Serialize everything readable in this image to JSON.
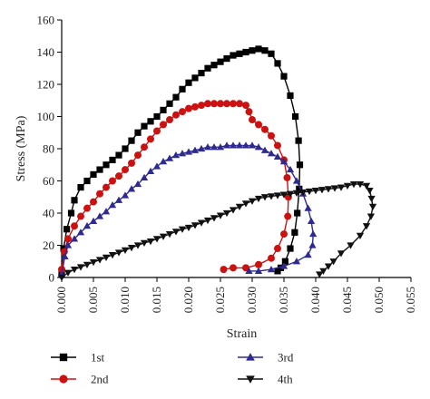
{
  "chart_data": {
    "type": "scatter",
    "title": "",
    "xlabel": "Strain",
    "ylabel": "Stress (MPa)",
    "xlim": [
      0,
      0.055
    ],
    "ylim": [
      0,
      160
    ],
    "x_ticks": [
      "0.000",
      "0.005",
      "0.010",
      "0.015",
      "0.020",
      "0.025",
      "0.030",
      "0.035",
      "0.040",
      "0.045",
      "0.050",
      "0.055"
    ],
    "y_ticks": [
      "0",
      "20",
      "40",
      "60",
      "80",
      "100",
      "120",
      "140",
      "160"
    ],
    "grid": false,
    "legend_position": "bottom",
    "series": [
      {
        "name": "1st",
        "color": "#000000",
        "marker": "square",
        "points": [
          [
            0.0,
            2
          ],
          [
            0.0003,
            18
          ],
          [
            0.0008,
            30
          ],
          [
            0.0015,
            40
          ],
          [
            0.002,
            48
          ],
          [
            0.003,
            56
          ],
          [
            0.004,
            60
          ],
          [
            0.005,
            64
          ],
          [
            0.006,
            67
          ],
          [
            0.007,
            70
          ],
          [
            0.008,
            73
          ],
          [
            0.009,
            76
          ],
          [
            0.01,
            80
          ],
          [
            0.011,
            85
          ],
          [
            0.012,
            90
          ],
          [
            0.013,
            94
          ],
          [
            0.014,
            97
          ],
          [
            0.015,
            100
          ],
          [
            0.016,
            104
          ],
          [
            0.017,
            108
          ],
          [
            0.018,
            112
          ],
          [
            0.019,
            117
          ],
          [
            0.02,
            121
          ],
          [
            0.021,
            124
          ],
          [
            0.022,
            127
          ],
          [
            0.023,
            130
          ],
          [
            0.024,
            132
          ],
          [
            0.025,
            134
          ],
          [
            0.026,
            136
          ],
          [
            0.027,
            138
          ],
          [
            0.028,
            139
          ],
          [
            0.029,
            140
          ],
          [
            0.03,
            141
          ],
          [
            0.031,
            142
          ],
          [
            0.032,
            141
          ],
          [
            0.033,
            139
          ],
          [
            0.034,
            133
          ],
          [
            0.035,
            125
          ],
          [
            0.036,
            113
          ],
          [
            0.0368,
            100
          ],
          [
            0.0373,
            85
          ],
          [
            0.0375,
            70
          ],
          [
            0.0374,
            55
          ],
          [
            0.0371,
            40
          ],
          [
            0.0367,
            28
          ],
          [
            0.036,
            18
          ],
          [
            0.0352,
            10
          ],
          [
            0.0345,
            6
          ],
          [
            0.034,
            4
          ]
        ]
      },
      {
        "name": "2nd",
        "color": "#cc1111",
        "marker": "circle",
        "points": [
          [
            0.0,
            5
          ],
          [
            0.0004,
            16
          ],
          [
            0.001,
            24
          ],
          [
            0.002,
            32
          ],
          [
            0.003,
            38
          ],
          [
            0.004,
            43
          ],
          [
            0.005,
            47
          ],
          [
            0.006,
            52
          ],
          [
            0.007,
            56
          ],
          [
            0.008,
            60
          ],
          [
            0.009,
            63
          ],
          [
            0.01,
            67
          ],
          [
            0.011,
            71
          ],
          [
            0.012,
            76
          ],
          [
            0.013,
            81
          ],
          [
            0.014,
            86
          ],
          [
            0.015,
            91
          ],
          [
            0.016,
            95
          ],
          [
            0.017,
            98
          ],
          [
            0.018,
            101
          ],
          [
            0.019,
            103
          ],
          [
            0.02,
            105
          ],
          [
            0.021,
            106
          ],
          [
            0.022,
            107
          ],
          [
            0.023,
            108
          ],
          [
            0.024,
            108
          ],
          [
            0.025,
            108
          ],
          [
            0.026,
            108
          ],
          [
            0.027,
            108
          ],
          [
            0.028,
            108
          ],
          [
            0.029,
            107
          ],
          [
            0.0295,
            103
          ],
          [
            0.03,
            98
          ],
          [
            0.031,
            95
          ],
          [
            0.032,
            92
          ],
          [
            0.033,
            88
          ],
          [
            0.034,
            82
          ],
          [
            0.035,
            73
          ],
          [
            0.0355,
            62
          ],
          [
            0.0357,
            50
          ],
          [
            0.0356,
            38
          ],
          [
            0.035,
            27
          ],
          [
            0.034,
            18
          ],
          [
            0.033,
            12
          ],
          [
            0.031,
            8
          ],
          [
            0.029,
            6
          ],
          [
            0.027,
            6
          ],
          [
            0.0255,
            5
          ]
        ]
      },
      {
        "name": "3rd",
        "color": "#2e2a8f",
        "marker": "triangle-up",
        "points": [
          [
            0.0,
            2
          ],
          [
            0.0005,
            13
          ],
          [
            0.001,
            20
          ],
          [
            0.002,
            24
          ],
          [
            0.003,
            28
          ],
          [
            0.004,
            32
          ],
          [
            0.005,
            35
          ],
          [
            0.006,
            38
          ],
          [
            0.007,
            41
          ],
          [
            0.008,
            45
          ],
          [
            0.009,
            48
          ],
          [
            0.01,
            51
          ],
          [
            0.011,
            55
          ],
          [
            0.012,
            58
          ],
          [
            0.013,
            62
          ],
          [
            0.014,
            66
          ],
          [
            0.015,
            69
          ],
          [
            0.016,
            72
          ],
          [
            0.017,
            74
          ],
          [
            0.018,
            76
          ],
          [
            0.019,
            77
          ],
          [
            0.02,
            78
          ],
          [
            0.021,
            79
          ],
          [
            0.022,
            80
          ],
          [
            0.023,
            81
          ],
          [
            0.024,
            81
          ],
          [
            0.025,
            81
          ],
          [
            0.026,
            82
          ],
          [
            0.027,
            82
          ],
          [
            0.028,
            82
          ],
          [
            0.029,
            82
          ],
          [
            0.03,
            82
          ],
          [
            0.031,
            81
          ],
          [
            0.032,
            79
          ],
          [
            0.033,
            77
          ],
          [
            0.034,
            75
          ],
          [
            0.035,
            72
          ],
          [
            0.036,
            67
          ],
          [
            0.037,
            60
          ],
          [
            0.038,
            52
          ],
          [
            0.0388,
            43
          ],
          [
            0.0393,
            35
          ],
          [
            0.0396,
            27
          ],
          [
            0.0395,
            20
          ],
          [
            0.0388,
            14
          ],
          [
            0.037,
            10
          ],
          [
            0.035,
            7
          ],
          [
            0.033,
            5
          ],
          [
            0.031,
            4
          ],
          [
            0.0295,
            4
          ]
        ]
      },
      {
        "name": "4th",
        "color": "#111111",
        "marker": "triangle-down",
        "points": [
          [
            0.0,
            0
          ],
          [
            0.001,
            3
          ],
          [
            0.002,
            5
          ],
          [
            0.003,
            6.5
          ],
          [
            0.004,
            8
          ],
          [
            0.005,
            9.5
          ],
          [
            0.006,
            11
          ],
          [
            0.007,
            12.5
          ],
          [
            0.008,
            14
          ],
          [
            0.009,
            15.5
          ],
          [
            0.01,
            17
          ],
          [
            0.011,
            18.5
          ],
          [
            0.012,
            20
          ],
          [
            0.013,
            21.5
          ],
          [
            0.014,
            22.5
          ],
          [
            0.015,
            24
          ],
          [
            0.016,
            25.5
          ],
          [
            0.017,
            27
          ],
          [
            0.018,
            28.5
          ],
          [
            0.019,
            30
          ],
          [
            0.02,
            31
          ],
          [
            0.021,
            32.5
          ],
          [
            0.022,
            34
          ],
          [
            0.023,
            35.5
          ],
          [
            0.024,
            37
          ],
          [
            0.025,
            38.5
          ],
          [
            0.026,
            40
          ],
          [
            0.027,
            42
          ],
          [
            0.028,
            44
          ],
          [
            0.029,
            46
          ],
          [
            0.03,
            47.5
          ],
          [
            0.031,
            49
          ],
          [
            0.032,
            50
          ],
          [
            0.033,
            50.5
          ],
          [
            0.034,
            51
          ],
          [
            0.035,
            51.5
          ],
          [
            0.036,
            52
          ],
          [
            0.037,
            52.5
          ],
          [
            0.038,
            53
          ],
          [
            0.039,
            53.5
          ],
          [
            0.04,
            54
          ],
          [
            0.041,
            54.5
          ],
          [
            0.042,
            55
          ],
          [
            0.043,
            55.5
          ],
          [
            0.044,
            56
          ],
          [
            0.045,
            57
          ],
          [
            0.046,
            58
          ],
          [
            0.047,
            58
          ],
          [
            0.048,
            57
          ],
          [
            0.0485,
            54
          ],
          [
            0.0488,
            49
          ],
          [
            0.049,
            44
          ],
          [
            0.0487,
            38
          ],
          [
            0.048,
            32
          ],
          [
            0.047,
            26
          ],
          [
            0.0455,
            20
          ],
          [
            0.044,
            15
          ],
          [
            0.0428,
            10
          ],
          [
            0.042,
            7
          ],
          [
            0.0412,
            4
          ],
          [
            0.0406,
            2
          ]
        ]
      }
    ]
  }
}
